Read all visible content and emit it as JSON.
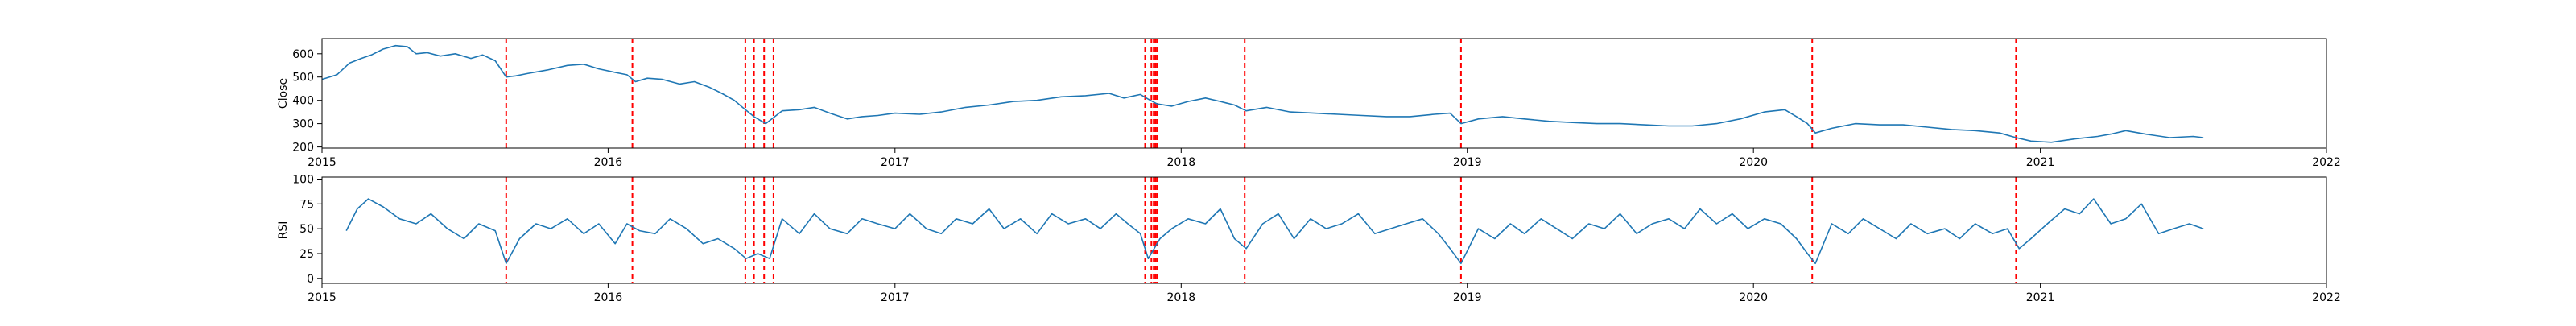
{
  "chart_data": [
    {
      "type": "line",
      "ylabel": "Close",
      "xlim": [
        "2015-01-01",
        "2022-01-01"
      ],
      "ylim": [
        195,
        665
      ],
      "yticks": [
        200,
        300,
        400,
        500,
        600
      ],
      "ytick_labels": [
        "200",
        "300",
        "400",
        "500",
        "600"
      ],
      "xticks": [
        "2015-01-01",
        "2016-01-01",
        "2017-01-01",
        "2018-01-01",
        "2019-01-01",
        "2020-01-01",
        "2021-01-01",
        "2022-01-01"
      ],
      "xtick_labels": [
        "2015",
        "2016",
        "2017",
        "2018",
        "2019",
        "2020",
        "2021",
        "2022"
      ],
      "line_color": "#1f77b4",
      "event_line_color": "#ff0000",
      "event_dates": [
        "2015-08-24",
        "2016-02-01",
        "2016-06-24",
        "2016-07-05",
        "2016-07-18",
        "2016-07-30",
        "2017-11-16",
        "2017-11-24",
        "2017-11-27",
        "2017-11-29",
        "2017-12-01",
        "2018-03-23",
        "2018-12-24",
        "2020-03-16",
        "2020-12-01"
      ],
      "series": [
        {
          "x": [
            "2015-01-01",
            "2015-01-20",
            "2015-02-05",
            "2015-02-20",
            "2015-03-05",
            "2015-03-20",
            "2015-04-05",
            "2015-04-20",
            "2015-05-01",
            "2015-05-15",
            "2015-06-01",
            "2015-06-20",
            "2015-07-10",
            "2015-07-25",
            "2015-08-10",
            "2015-08-24",
            "2015-09-05",
            "2015-09-20",
            "2015-10-15",
            "2015-11-10",
            "2015-12-01",
            "2015-12-20",
            "2016-01-10",
            "2016-01-25",
            "2016-02-05",
            "2016-02-20",
            "2016-03-10",
            "2016-04-01",
            "2016-04-20",
            "2016-05-10",
            "2016-05-25",
            "2016-06-10",
            "2016-06-24",
            "2016-07-05",
            "2016-07-20",
            "2016-08-10",
            "2016-09-01",
            "2016-09-20",
            "2016-10-10",
            "2016-11-01",
            "2016-11-20",
            "2016-12-10",
            "2017-01-01",
            "2017-02-01",
            "2017-03-01",
            "2017-04-01",
            "2017-05-01",
            "2017-06-01",
            "2017-07-01",
            "2017-08-01",
            "2017-09-01",
            "2017-10-01",
            "2017-10-20",
            "2017-11-10",
            "2017-11-20",
            "2017-12-01",
            "2017-12-20",
            "2018-01-10",
            "2018-02-01",
            "2018-02-20",
            "2018-03-10",
            "2018-03-25",
            "2018-04-20",
            "2018-05-20",
            "2018-06-20",
            "2018-07-20",
            "2018-08-20",
            "2018-09-20",
            "2018-10-20",
            "2018-11-20",
            "2018-12-10",
            "2018-12-24",
            "2019-01-15",
            "2019-02-15",
            "2019-03-15",
            "2019-04-15",
            "2019-05-15",
            "2019-06-15",
            "2019-07-15",
            "2019-08-15",
            "2019-09-15",
            "2019-10-15",
            "2019-11-15",
            "2019-12-15",
            "2020-01-15",
            "2020-02-10",
            "2020-02-25",
            "2020-03-10",
            "2020-03-20",
            "2020-04-10",
            "2020-05-10",
            "2020-06-10",
            "2020-07-10",
            "2020-08-10",
            "2020-09-10",
            "2020-10-10",
            "2020-11-10",
            "2020-12-01",
            "2020-12-20",
            "2021-01-15",
            "2021-02-15",
            "2021-03-15",
            "2021-04-01",
            "2021-04-20",
            "2021-05-15",
            "2021-06-15",
            "2021-07-15",
            "2021-07-28"
          ],
          "values": [
            490,
            510,
            560,
            580,
            595,
            620,
            635,
            630,
            600,
            605,
            590,
            600,
            580,
            595,
            570,
            500,
            505,
            515,
            530,
            550,
            555,
            535,
            520,
            510,
            480,
            495,
            490,
            470,
            480,
            455,
            430,
            400,
            360,
            330,
            300,
            355,
            360,
            370,
            345,
            320,
            330,
            335,
            345,
            340,
            350,
            370,
            380,
            395,
            400,
            415,
            420,
            430,
            410,
            425,
            405,
            385,
            375,
            395,
            410,
            395,
            380,
            355,
            370,
            350,
            345,
            340,
            335,
            330,
            330,
            340,
            345,
            300,
            320,
            330,
            320,
            310,
            305,
            300,
            300,
            295,
            290,
            290,
            300,
            320,
            350,
            360,
            330,
            300,
            260,
            280,
            300,
            295,
            295,
            285,
            275,
            270,
            260,
            240,
            225,
            220,
            235,
            245,
            255,
            270,
            255,
            240,
            245,
            240
          ]
        }
      ]
    },
    {
      "type": "line",
      "ylabel": "RSI",
      "xlim": [
        "2015-01-01",
        "2022-01-01"
      ],
      "ylim": [
        -5,
        102
      ],
      "yticks": [
        0,
        25,
        50,
        75,
        100
      ],
      "ytick_labels": [
        "0",
        "25",
        "50",
        "75",
        "100"
      ],
      "xticks": [
        "2015-01-01",
        "2016-01-01",
        "2017-01-01",
        "2018-01-01",
        "2019-01-01",
        "2020-01-01",
        "2021-01-01",
        "2022-01-01"
      ],
      "xtick_labels": [
        "2015",
        "2016",
        "2017",
        "2018",
        "2019",
        "2020",
        "2021",
        "2022"
      ],
      "line_color": "#1f77b4",
      "event_line_color": "#ff0000",
      "event_dates": [
        "2015-08-24",
        "2016-02-01",
        "2016-06-24",
        "2016-07-05",
        "2016-07-18",
        "2016-07-30",
        "2017-11-16",
        "2017-11-24",
        "2017-11-27",
        "2017-11-29",
        "2017-12-01",
        "2018-03-23",
        "2018-12-24",
        "2020-03-16",
        "2020-12-01"
      ],
      "series": [
        {
          "x": [
            "2015-02-01",
            "2015-02-15",
            "2015-03-01",
            "2015-03-20",
            "2015-04-10",
            "2015-05-01",
            "2015-05-20",
            "2015-06-10",
            "2015-07-01",
            "2015-07-20",
            "2015-08-10",
            "2015-08-24",
            "2015-09-10",
            "2015-10-01",
            "2015-10-20",
            "2015-11-10",
            "2015-12-01",
            "2015-12-20",
            "2016-01-10",
            "2016-01-25",
            "2016-02-10",
            "2016-03-01",
            "2016-03-20",
            "2016-04-10",
            "2016-05-01",
            "2016-05-20",
            "2016-06-10",
            "2016-06-25",
            "2016-07-10",
            "2016-07-25",
            "2016-08-10",
            "2016-09-01",
            "2016-09-20",
            "2016-10-10",
            "2016-11-01",
            "2016-11-20",
            "2016-12-10",
            "2017-01-01",
            "2017-01-20",
            "2017-02-10",
            "2017-03-01",
            "2017-03-20",
            "2017-04-10",
            "2017-05-01",
            "2017-05-20",
            "2017-06-10",
            "2017-07-01",
            "2017-07-20",
            "2017-08-10",
            "2017-09-01",
            "2017-09-20",
            "2017-10-10",
            "2017-10-25",
            "2017-11-10",
            "2017-11-20",
            "2017-12-05",
            "2017-12-20",
            "2018-01-10",
            "2018-02-01",
            "2018-02-20",
            "2018-03-10",
            "2018-03-25",
            "2018-04-15",
            "2018-05-05",
            "2018-05-25",
            "2018-06-15",
            "2018-07-05",
            "2018-07-25",
            "2018-08-15",
            "2018-09-05",
            "2018-09-25",
            "2018-10-15",
            "2018-11-05",
            "2018-11-25",
            "2018-12-10",
            "2018-12-24",
            "2019-01-15",
            "2019-02-05",
            "2019-02-25",
            "2019-03-15",
            "2019-04-05",
            "2019-04-25",
            "2019-05-15",
            "2019-06-05",
            "2019-06-25",
            "2019-07-15",
            "2019-08-05",
            "2019-08-25",
            "2019-09-15",
            "2019-10-05",
            "2019-10-25",
            "2019-11-15",
            "2019-12-05",
            "2019-12-25",
            "2020-01-15",
            "2020-02-05",
            "2020-02-25",
            "2020-03-10",
            "2020-03-20",
            "2020-04-10",
            "2020-05-01",
            "2020-05-20",
            "2020-06-10",
            "2020-07-01",
            "2020-07-20",
            "2020-08-10",
            "2020-09-01",
            "2020-09-20",
            "2020-10-10",
            "2020-11-01",
            "2020-11-20",
            "2020-12-05",
            "2020-12-20",
            "2021-01-10",
            "2021-02-01",
            "2021-02-20",
            "2021-03-10",
            "2021-04-01",
            "2021-04-20",
            "2021-05-10",
            "2021-06-01",
            "2021-06-20",
            "2021-07-10",
            "2021-07-28"
          ],
          "values": [
            48,
            70,
            80,
            72,
            60,
            55,
            65,
            50,
            40,
            55,
            48,
            15,
            40,
            55,
            50,
            60,
            45,
            55,
            35,
            55,
            48,
            45,
            60,
            50,
            35,
            40,
            30,
            20,
            25,
            20,
            60,
            45,
            65,
            50,
            45,
            60,
            55,
            50,
            65,
            50,
            45,
            60,
            55,
            70,
            50,
            60,
            45,
            65,
            55,
            60,
            50,
            65,
            55,
            45,
            20,
            40,
            50,
            60,
            55,
            70,
            40,
            30,
            55,
            65,
            40,
            60,
            50,
            55,
            65,
            45,
            50,
            55,
            60,
            45,
            30,
            15,
            50,
            40,
            55,
            45,
            60,
            50,
            40,
            55,
            50,
            65,
            45,
            55,
            60,
            50,
            70,
            55,
            65,
            50,
            60,
            55,
            40,
            25,
            15,
            55,
            45,
            60,
            50,
            40,
            55,
            45,
            50,
            40,
            55,
            45,
            50,
            30,
            40,
            55,
            70,
            65,
            80,
            55,
            60,
            75,
            45,
            50,
            55,
            50
          ]
        }
      ]
    }
  ]
}
